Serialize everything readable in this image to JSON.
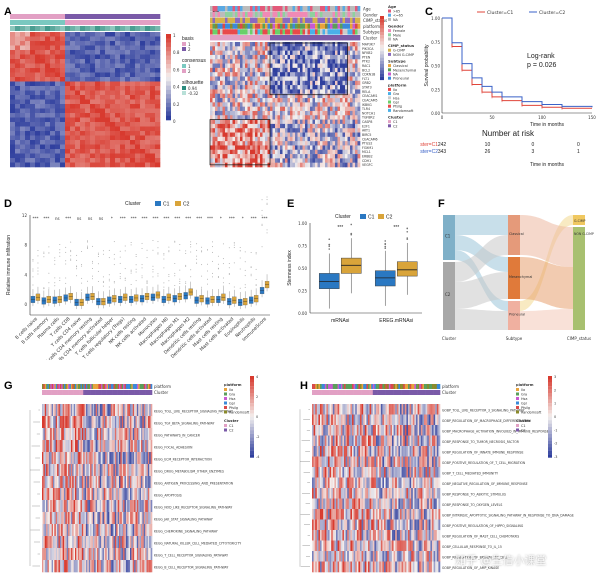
{
  "panels": [
    "A",
    "B",
    "C",
    "D",
    "E",
    "F",
    "G",
    "H"
  ],
  "panelA": {
    "legend_groups": [
      {
        "title": "basis",
        "items": [
          "1",
          "2"
        ]
      },
      {
        "title": "consensus",
        "items": [
          "1",
          "2"
        ]
      },
      {
        "title": "silhouette",
        "items": [
          "0.94",
          "-0.32"
        ]
      }
    ],
    "scale_ticks": [
      "1",
      "0.8",
      "0.6",
      "0.4",
      "0.2",
      "0"
    ]
  },
  "panelB": {
    "genes": [
      "MAP3K7",
      "PIK3CA",
      "NFKB2",
      "PTEN",
      "PTK2",
      "RAC1",
      "BCL2",
      "CDKN1B",
      "FLT1",
      "GRB2",
      "STAT3",
      "RELA",
      "CEACAM1",
      "CEACAM5",
      "IKBKG",
      "TLR4",
      "NOTCH1",
      "TGFBR2",
      "CASP8",
      "E2F1",
      "AKT1",
      "BIRC5",
      "CEACAM6",
      "PTGS2",
      "FOXM1",
      "MCL1",
      "ERBB2",
      "CDH1",
      "VEGFC"
    ],
    "legend": [
      {
        "title": "Age",
        "items": [
          ">65",
          "<=65",
          "NA"
        ]
      },
      {
        "title": "Gender",
        "items": [
          "Female",
          "Male",
          "NA"
        ]
      },
      {
        "title": "CIMP_status",
        "items": [
          "G-CIMP",
          "NON G-CIMP"
        ]
      },
      {
        "title": "Subtype",
        "items": [
          "Classical",
          "Mesenchymal",
          "NA",
          "Proneural"
        ]
      },
      {
        "title": "platform",
        "items": [
          "Ila",
          "Gra",
          "Hsa",
          "Gpl",
          "Pfsilg",
          "Randomsoft"
        ]
      },
      {
        "title": "Cluster",
        "items": [
          "C1",
          "C2"
        ]
      }
    ],
    "track_labels": [
      "Age",
      "Gender",
      "CIMP_status",
      "platform",
      "Subtype",
      "Cluster"
    ],
    "scale_ticks": [
      "3",
      "2",
      "1",
      "0",
      "-1",
      "-2",
      "-3"
    ]
  },
  "panelC": {
    "legend": [
      "Cluster=C1",
      "Cluster=C2"
    ],
    "ylabel": "Survival probability",
    "xlabel": "Time in months",
    "annotation_line1": "Log-rank",
    "annotation_line2": "p = 0.026",
    "risk_title": "Number at risk",
    "risk_rows": [
      {
        "label": "Cluster=C1",
        "values": [
          "242",
          "10",
          "0",
          "0",
          "1"
        ]
      },
      {
        "label": "Cluster=C2",
        "values": [
          "343",
          "26",
          "3",
          "1",
          "1"
        ]
      }
    ],
    "risk_xlabel": "Time in months",
    "x_ticks": [
      "0",
      "50",
      "100",
      "150"
    ],
    "y_ticks": [
      "1.00",
      "0.75",
      "0.50",
      "0.25",
      "0.00"
    ]
  },
  "panelD": {
    "legend_title": "Cluster",
    "legend": [
      "C1",
      "C2"
    ],
    "ylabel": "Relative immune infiltration",
    "y_ticks": [
      "12",
      "8",
      "4",
      "0"
    ],
    "significance": [
      "***",
      "***",
      "ns",
      "***",
      "ns",
      "ns",
      "ns",
      "*",
      "***",
      "***",
      "***",
      "***",
      "***",
      "***",
      "***",
      "***",
      "***",
      "*",
      "***",
      "*",
      "***",
      "***"
    ],
    "categories": [
      "B cells naive",
      "B cells memory",
      "Plasma cells",
      "T cells CD8",
      "T cells CD4 naive",
      "T cells CD4 memory resting",
      "T cells CD4 memory activated",
      "T cells follicular helper",
      "T cells regulatory (Tregs)",
      "NK cells resting",
      "NK cells activated",
      "Monocytes",
      "Macrophages M0",
      "Macrophages M1",
      "Macrophages M2",
      "Dendritic cells resting",
      "Dendritic cells activated",
      "Mast cells resting",
      "Mast cells activated",
      "Eosinophils",
      "Neutrophils",
      "ImmuneScore"
    ]
  },
  "panelE": {
    "legend_title": "Cluster",
    "legend": [
      "C1",
      "C2"
    ],
    "ylabel": "Stemness index",
    "y_ticks": [
      "1.00",
      "0.75",
      "0.50",
      "0.25",
      "0.00"
    ],
    "categories": [
      "mRNAsi",
      "EREG.mRNAsi"
    ],
    "significance": [
      "***",
      "***"
    ]
  },
  "panelF": {
    "left_nodes": [
      "C1",
      "C2"
    ],
    "mid_nodes": [
      "Classical",
      "Mesenchymal",
      "Proneural"
    ],
    "right_nodes": [
      "G-CIMP",
      "NON G-CIMP"
    ],
    "axis": [
      "Cluster",
      "Subtype",
      "CIMP_status"
    ]
  },
  "panelG": {
    "pathways": [
      "KEGG_TOLL_LIKE_RECEPTOR_SIGNALING_PATHWAY",
      "KEGG_TGF_BETA_SIGNALING_PATHWAY",
      "KEGG_PATHWAYS_IN_CANCER",
      "KEGG_FOCAL_ADHESION",
      "KEGG_ECM_RECEPTOR_INTERACTION",
      "KEGG_DRUG_METABOLISM_OTHER_ENZYMES",
      "KEGG_ANTIGEN_PROCESSING_AND_PRESENTATION",
      "KEGG_APOPTOSIS",
      "KEGG_NOD_LIKE_RECEPTOR_SIGNALING_PATHWAY",
      "KEGG_JAK_STAT_SIGNALING_PATHWAY",
      "KEGG_CHEMOKINE_SIGNALING_PATHWAY",
      "KEGG_NATURAL_KILLER_CELL_MEDIATED_CYTOTOXICITY",
      "KEGG_T_CELL_RECEPTOR_SIGNALING_PATHWAY",
      "KEGG_B_CELL_RECEPTOR_SIGNALING_PATHWAY"
    ],
    "legend": [
      {
        "title": "platform",
        "items": [
          "Ila",
          "Gra",
          "Hsa",
          "Gpl",
          "Pfsilg",
          "Randomsoft"
        ]
      },
      {
        "title": "Cluster",
        "items": [
          "C1",
          "C2"
        ]
      }
    ],
    "scale_ticks": [
      "4",
      "2",
      "0",
      "-2",
      "-4"
    ]
  },
  "panelH": {
    "pathways": [
      "GOBP_TOLL_LIKE_RECEPTOR_3_SIGNALING_PATHWAY",
      "GOBP_REGULATION_OF_MACROPHAGE_DIFFERENTIATION",
      "GOBP_MACROPHAGE_ACTIVATION_INVOLVED_IN_IMMUNE_RESPONSE",
      "GOBP_RESPONSE_TO_TUMOR_NECROSIS_FACTOR",
      "GOBP_REGULATION_OF_INNATE_IMMUNE_RESPONSE",
      "GOBP_POSITIVE_REGULATION_OF_T_CELL_MIGRATION",
      "GOBP_T_CELL_MEDIATED_IMMUNITY",
      "GOBP_NEGATIVE_REGULATION_OF_IMMUNE_RESPONSE",
      "GOBP_RESPONSE_TO_ABIOTIC_STIMULUS",
      "GOBP_RESPONSE_TO_OXYGEN_LEVELS",
      "GOBP_INTRINSIC_APOPTOTIC_SIGNALING_PATHWAY_IN_RESPONSE_TO_DNA_DAMAGE",
      "GOBP_POSITIVE_REGULATION_OF_HIPPO_SIGNALING",
      "GOBP_REGULATION_OF_MAST_CELL_CHEMOTAXIS",
      "GOBP_CELLULAR_RESPONSE_TO_IL_15",
      "GOBP_REGULATION_OF_BROWN_FAT_CELL",
      "GOBP_REGULATION_OF_AMP_KINASE"
    ],
    "legend": [
      {
        "title": "platform",
        "items": [
          "Ila",
          "Gra",
          "Hsa",
          "Gpl",
          "Pfsilg",
          "Randomsoft"
        ]
      },
      {
        "title": "Cluster",
        "items": [
          "C1",
          "C2"
        ]
      }
    ],
    "scale_ticks": [
      "3",
      "2",
      "1",
      "0",
      "-1",
      "-2",
      "-3"
    ]
  },
  "colors": {
    "heat_red": "#d83a2f",
    "heat_blue": "#2f3f9e",
    "heat_white": "#f4f0ee",
    "c1_blue": "#2a78c2",
    "c2_gold": "#d9a43a",
    "km_red": "#e0453a",
    "km_blue": "#3a62c8",
    "pink": "#e2a0c4",
    "teal": "#7ac8c0",
    "purple": "#7a5aa8"
  },
  "chart_data": [
    {
      "type": "line",
      "title": "",
      "xlabel": "Time in months",
      "ylabel": "Survival probability",
      "xlim": [
        0,
        150
      ],
      "ylim": [
        0,
        1
      ],
      "series": [
        {
          "name": "Cluster=C1",
          "x": [
            0,
            10,
            20,
            30,
            40,
            50,
            60,
            80,
            100,
            120,
            150
          ],
          "y": [
            1.0,
            0.7,
            0.45,
            0.3,
            0.22,
            0.17,
            0.13,
            0.08,
            0.06,
            0.05,
            0.05
          ]
        },
        {
          "name": "Cluster=C2",
          "x": [
            0,
            10,
            20,
            30,
            40,
            50,
            60,
            80,
            100,
            120,
            150
          ],
          "y": [
            1.0,
            0.74,
            0.52,
            0.37,
            0.28,
            0.22,
            0.17,
            0.12,
            0.09,
            0.07,
            0.06
          ]
        }
      ]
    },
    {
      "type": "box",
      "ylabel": "Relative immune infiltration",
      "ylim": [
        0,
        12
      ],
      "categories": [
        "B cells naive",
        "B cells memory",
        "Plasma cells",
        "T cells CD8",
        "T cells CD4 naive",
        "T cells CD4 memory resting",
        "T cells CD4 memory activated",
        "T cells follicular helper",
        "T cells regulatory (Tregs)",
        "NK cells resting",
        "NK cells activated",
        "Monocytes",
        "Macrophages M0",
        "Macrophages M1",
        "Macrophages M2",
        "Dendritic cells resting",
        "Dendritic cells activated",
        "Mast cells resting",
        "Mast cells activated",
        "Eosinophils",
        "Neutrophils",
        "ImmuneScore"
      ],
      "series": [
        {
          "name": "C1",
          "medians": [
            0.6,
            0.4,
            0.5,
            0.8,
            0.2,
            0.9,
            0.3,
            0.5,
            0.6,
            0.6,
            0.7,
            0.9,
            0.6,
            0.7,
            1.1,
            0.5,
            0.4,
            0.6,
            0.3,
            0.2,
            0.5,
            1.8
          ]
        },
        {
          "name": "C2",
          "medians": [
            0.9,
            0.6,
            0.6,
            1.0,
            0.2,
            1.0,
            0.3,
            0.7,
            0.9,
            0.8,
            1.0,
            1.2,
            0.9,
            1.0,
            1.6,
            0.7,
            0.6,
            0.9,
            0.5,
            0.3,
            0.7,
            2.6
          ]
        }
      ]
    },
    {
      "type": "box",
      "ylabel": "Stemness index",
      "ylim": [
        0,
        1
      ],
      "categories": [
        "mRNAsi",
        "EREG.mRNAsi"
      ],
      "series": [
        {
          "name": "C1",
          "q1": [
            0.27,
            0.3
          ],
          "median": [
            0.35,
            0.39
          ],
          "q3": [
            0.44,
            0.47
          ]
        },
        {
          "name": "C2",
          "q1": [
            0.44,
            0.41
          ],
          "median": [
            0.53,
            0.48
          ],
          "q3": [
            0.61,
            0.57
          ]
        }
      ]
    }
  ]
}
